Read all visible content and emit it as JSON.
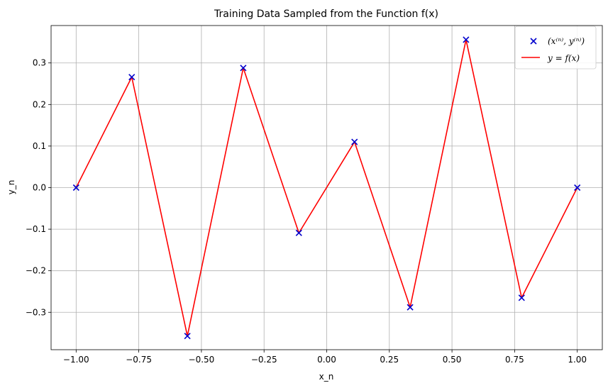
{
  "chart_data": {
    "type": "line",
    "title": "Training Data Sampled from the Function f(x)",
    "xlabel": "x_n",
    "ylabel": "y_n",
    "xlim": [
      -1.1,
      1.1
    ],
    "ylim": [
      -0.39,
      0.39
    ],
    "x_ticks": [
      -1.0,
      -0.75,
      -0.5,
      -0.25,
      0.0,
      0.25,
      0.5,
      0.75,
      1.0
    ],
    "x_tick_labels": [
      "−1.00",
      "−0.75",
      "−0.50",
      "−0.25",
      "0.00",
      "0.25",
      "0.50",
      "0.75",
      "1.00"
    ],
    "y_ticks": [
      -0.3,
      -0.2,
      -0.1,
      0.0,
      0.1,
      0.2,
      0.3
    ],
    "y_tick_labels": [
      "−0.3",
      "−0.2",
      "−0.1",
      "0.0",
      "0.1",
      "0.2",
      "0.3"
    ],
    "grid": true,
    "legend_position": "top-right",
    "series": [
      {
        "name": "(x⁽ⁿ⁾, y⁽ⁿ⁾)",
        "kind": "scatter",
        "marker": "x",
        "color": "#0000cc",
        "x": [
          -1.0,
          -0.778,
          -0.556,
          -0.333,
          -0.111,
          0.111,
          0.333,
          0.556,
          0.778,
          1.0
        ],
        "y": [
          0.0,
          0.266,
          -0.357,
          0.288,
          -0.109,
          0.11,
          -0.288,
          0.356,
          -0.265,
          0.0
        ]
      },
      {
        "name": "y = f(x)",
        "kind": "line",
        "color": "#ff0000",
        "x": [
          -1.0,
          -0.778,
          -0.556,
          -0.333,
          -0.111,
          0.111,
          0.333,
          0.556,
          0.778,
          1.0
        ],
        "y": [
          0.0,
          0.266,
          -0.357,
          0.288,
          -0.109,
          0.11,
          -0.288,
          0.356,
          -0.265,
          0.0
        ]
      }
    ]
  }
}
